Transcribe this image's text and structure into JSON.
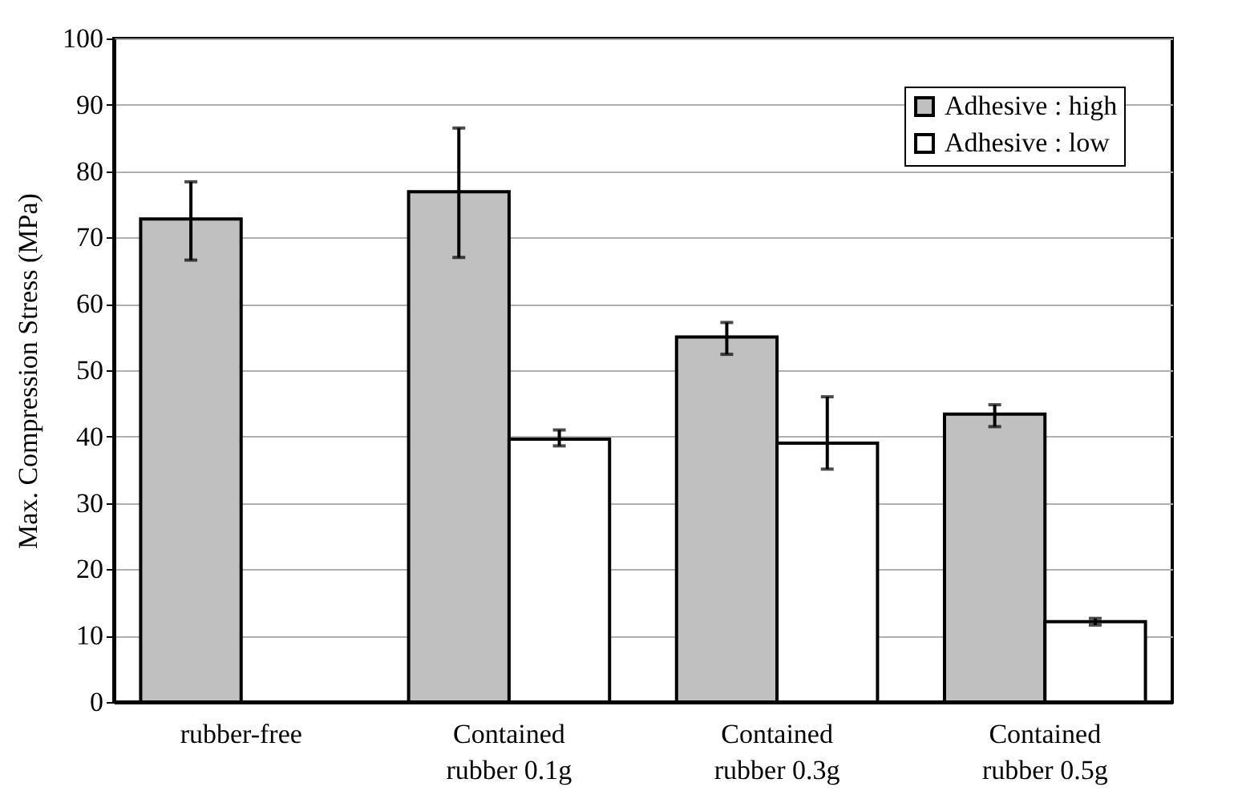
{
  "chart_data": {
    "type": "bar",
    "ylabel": "Max. Compression Stress (MPa)",
    "categories": [
      "rubber-free",
      "Contained rubber 0.1g",
      "Contained rubber 0.3g",
      "Contained rubber 0.5g"
    ],
    "series": [
      {
        "name": "Adhesive : high",
        "color": "#c0c0c0",
        "values": [
          72.8,
          76.9,
          55.0,
          43.4
        ],
        "errors": [
          [
            66.6,
            78.4
          ],
          [
            67.0,
            86.5
          ],
          [
            52.4,
            57.2
          ],
          [
            41.5,
            44.8
          ]
        ]
      },
      {
        "name": "Adhesive : low",
        "color": "#ffffff",
        "values": [
          null,
          39.6,
          39.0,
          12.1
        ],
        "errors": [
          null,
          [
            38.6,
            41.0
          ],
          [
            35.1,
            46.0
          ],
          [
            11.6,
            12.6
          ]
        ]
      }
    ],
    "ylim": [
      0,
      100
    ],
    "yticks": [
      0,
      10,
      20,
      30,
      40,
      50,
      60,
      70,
      80,
      90,
      100
    ],
    "grid": "y",
    "legend": "top right"
  }
}
